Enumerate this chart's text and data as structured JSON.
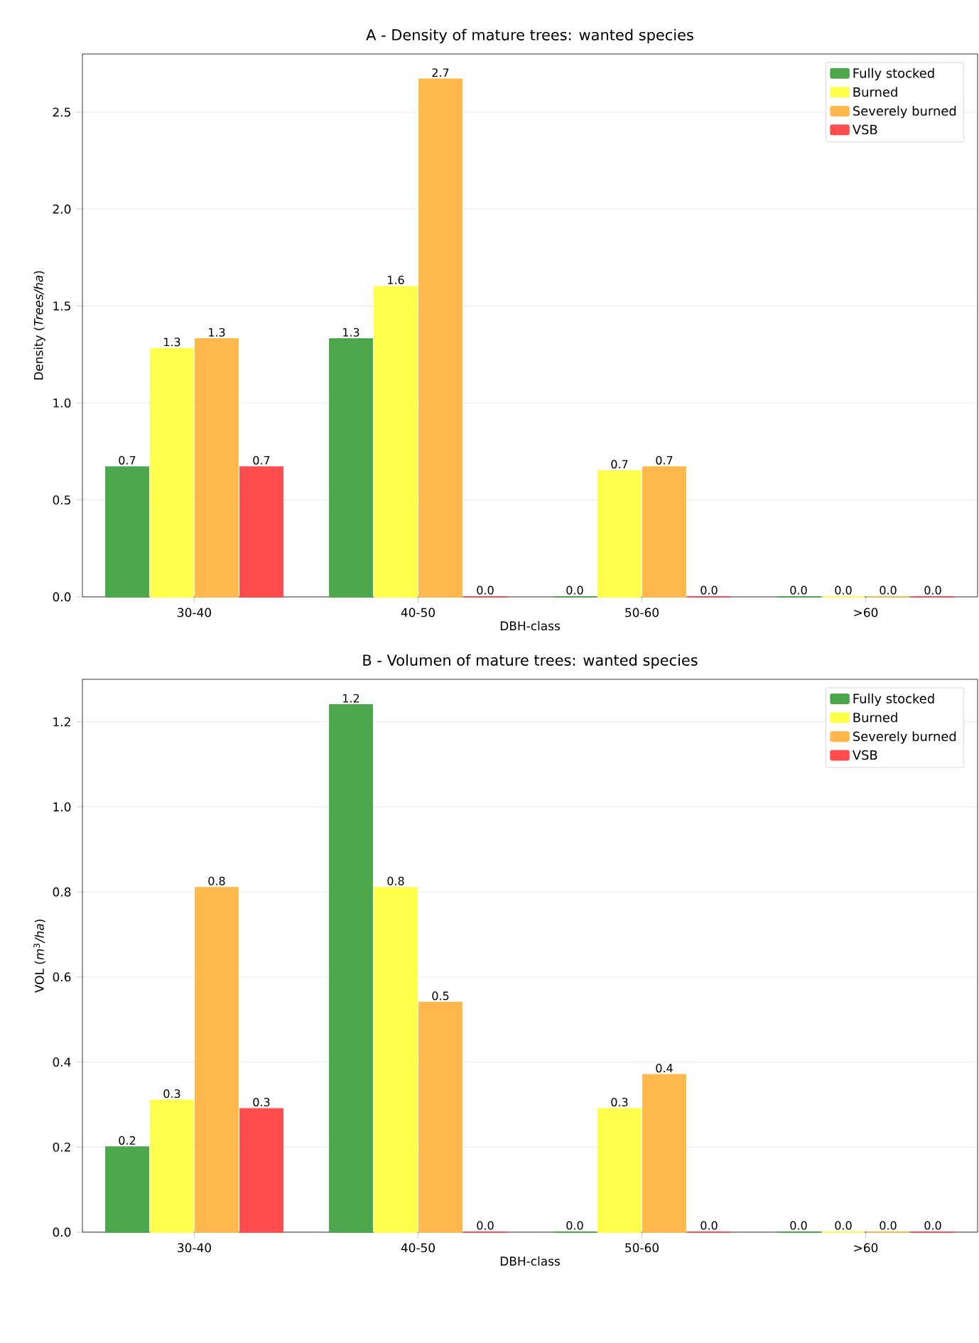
{
  "chart_data": [
    {
      "type": "bar",
      "title": "A - Density of mature trees: wanted species",
      "xlabel": "DBH-class",
      "ylabel": "Density (*Trees/ha*)",
      "categories": [
        "30-40",
        "40-50",
        "50-60",
        ">60"
      ],
      "series": [
        {
          "name": "Fully stocked",
          "color": "#4ca64c",
          "values": [
            0.67,
            1.33,
            0.0,
            0.0
          ],
          "value_labels": [
            "0.7",
            "1.3",
            "0.0",
            "0.0"
          ]
        },
        {
          "name": "Burned",
          "color": "#ffff4c",
          "values": [
            1.28,
            1.6,
            0.65,
            0.0
          ],
          "value_labels": [
            "1.3",
            "1.6",
            "0.7",
            "0.0"
          ]
        },
        {
          "name": "Severely burned",
          "color": "#ffb84c",
          "values": [
            1.33,
            2.67,
            0.67,
            0.0
          ],
          "value_labels": [
            "1.3",
            "2.7",
            "0.7",
            "0.0"
          ]
        },
        {
          "name": "VSB",
          "color": "#ff4c4c",
          "values": [
            0.67,
            0.0,
            0.0,
            0.0
          ],
          "value_labels": [
            "0.7",
            "0.0",
            "0.0",
            "0.0"
          ]
        }
      ],
      "ylim": [
        0,
        2.8
      ],
      "yticks": [
        {
          "value": 0,
          "label": "0.0"
        },
        {
          "value": 0.5,
          "label": "0.5"
        },
        {
          "value": 1,
          "label": "1.0"
        },
        {
          "value": 1.5,
          "label": "1.5"
        },
        {
          "value": 2,
          "label": "2.0"
        },
        {
          "value": 2.5,
          "label": "2.5"
        }
      ],
      "grid": "y",
      "legend": "top right"
    },
    {
      "type": "bar",
      "title": "B - Volumen of mature trees: wanted species",
      "xlabel": "DBH-class",
      "ylabel": "VOL (*m*$^{3}$*/ha*)",
      "categories": [
        "30-40",
        "40-50",
        "50-60",
        ">60"
      ],
      "series": [
        {
          "name": "Fully stocked",
          "color": "#4ca64c",
          "values": [
            0.2,
            1.24,
            0.0,
            0.0
          ],
          "value_labels": [
            "0.2",
            "1.2",
            "0.0",
            "0.0"
          ]
        },
        {
          "name": "Burned",
          "color": "#ffff4c",
          "values": [
            0.31,
            0.81,
            0.29,
            0.0
          ],
          "value_labels": [
            "0.3",
            "0.8",
            "0.3",
            "0.0"
          ]
        },
        {
          "name": "Severely burned",
          "color": "#ffb84c",
          "values": [
            0.81,
            0.54,
            0.37,
            0.0
          ],
          "value_labels": [
            "0.8",
            "0.5",
            "0.4",
            "0.0"
          ]
        },
        {
          "name": "VSB",
          "color": "#ff4c4c",
          "values": [
            0.29,
            0.0,
            0.0,
            0.0
          ],
          "value_labels": [
            "0.3",
            "0.0",
            "0.0",
            "0.0"
          ]
        }
      ],
      "ylim": [
        0,
        1.3
      ],
      "yticks": [
        {
          "value": 0,
          "label": "0.0"
        },
        {
          "value": 0.2,
          "label": "0.2"
        },
        {
          "value": 0.4,
          "label": "0.4"
        },
        {
          "value": 0.6,
          "label": "0.6"
        },
        {
          "value": 0.8,
          "label": "0.8"
        },
        {
          "value": 1.0,
          "label": "1.0"
        },
        {
          "value": 1.2,
          "label": "1.2"
        }
      ],
      "grid": "y",
      "legend": "top right"
    }
  ]
}
